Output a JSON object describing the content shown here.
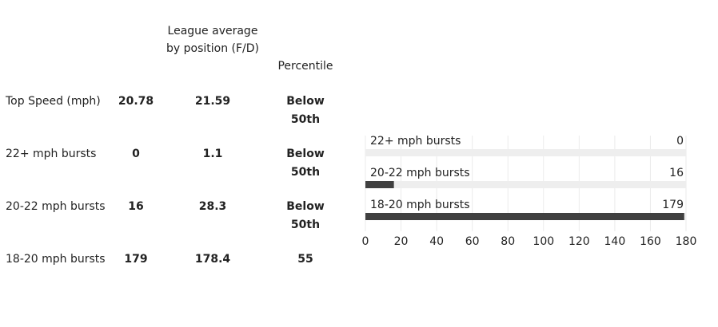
{
  "table": {
    "headers": [
      "League average by position (F/D)",
      "Percentile"
    ],
    "rows": [
      [
        "Top Speed (mph)",
        "20.78",
        "21.59",
        "Below 50th"
      ],
      [
        "22+ mph bursts",
        "0",
        "1.1",
        "Below 50th"
      ],
      [
        "20-22 mph bursts",
        "16",
        "28.3",
        "Below 50th"
      ],
      [
        "18-20 mph bursts",
        "179",
        "178.4",
        "55"
      ]
    ]
  },
  "chart_data": {
    "type": "bar",
    "orientation": "horizontal",
    "categories": [
      "22+ mph bursts",
      "20-22 mph bursts",
      "18-20 mph bursts"
    ],
    "values": [
      0,
      16,
      179
    ],
    "color": "#404040",
    "track_color": "#eeeeee",
    "xlim": [
      0,
      180
    ],
    "xticks": [
      0,
      20,
      40,
      60,
      80,
      100,
      120,
      140,
      160,
      180
    ],
    "grid": true
  }
}
